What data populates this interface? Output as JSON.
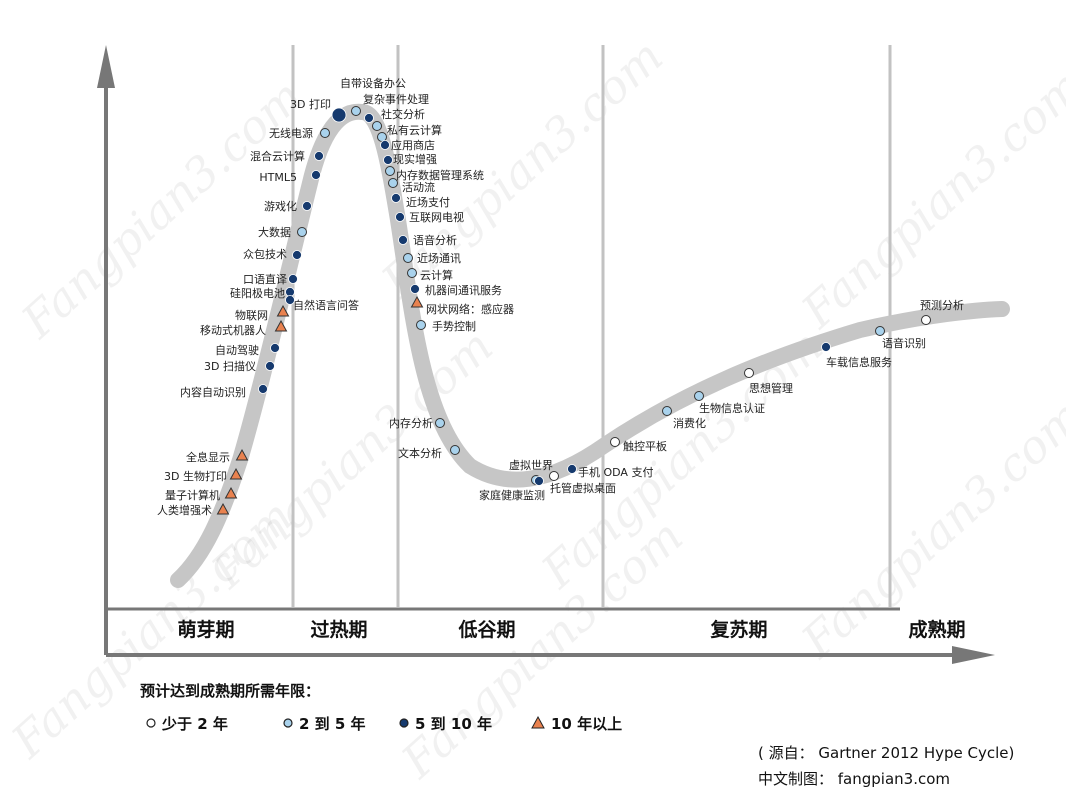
{
  "watermark": "Fangpian3.com",
  "phases": [
    "萌芽期",
    "过热期",
    "低谷期",
    "复苏期",
    "成熟期"
  ],
  "technologies": [
    {
      "label": "自带设备办公",
      "cat": "2-5"
    },
    {
      "label": "3D 打印",
      "cat": "5-10"
    },
    {
      "label": "复杂事件处理",
      "cat": "5-10"
    },
    {
      "label": "社交分析",
      "cat": "2-5"
    },
    {
      "label": "私有云计算",
      "cat": "2-5"
    },
    {
      "label": "应用商店",
      "cat": "5-10"
    },
    {
      "label": "无线电源",
      "cat": "2-5"
    },
    {
      "label": "现实增强",
      "cat": "5-10"
    },
    {
      "label": "混合云计算",
      "cat": "5-10"
    },
    {
      "label": "内存数据管理系统",
      "cat": "2-5"
    },
    {
      "label": "HTML5",
      "cat": "5-10"
    },
    {
      "label": "活动流",
      "cat": "2-5"
    },
    {
      "label": "游戏化",
      "cat": "5-10"
    },
    {
      "label": "近场支付",
      "cat": "5-10"
    },
    {
      "label": "互联网电视",
      "cat": "5-10"
    },
    {
      "label": "大数据",
      "cat": "2-5"
    },
    {
      "label": "语音分析",
      "cat": "5-10"
    },
    {
      "label": "众包技术",
      "cat": "5-10"
    },
    {
      "label": "近场通讯",
      "cat": "2-5"
    },
    {
      "label": "云计算",
      "cat": "2-5"
    },
    {
      "label": "口语直译",
      "cat": "5-10"
    },
    {
      "label": "机器间通讯服务",
      "cat": "5-10"
    },
    {
      "label": "硅阳极电池",
      "cat": "5-10"
    },
    {
      "label": "自然语言问答",
      "cat": "5-10"
    },
    {
      "label": "网状网络：感应器",
      "cat": "10+"
    },
    {
      "label": "物联网",
      "cat": "10+"
    },
    {
      "label": "手势控制",
      "cat": "2-5"
    },
    {
      "label": "移动式机器人",
      "cat": "10+"
    },
    {
      "label": "自动驾驶",
      "cat": "5-10"
    },
    {
      "label": "3D 扫描仪",
      "cat": "5-10"
    },
    {
      "label": "内容自动识别",
      "cat": "5-10"
    },
    {
      "label": "内存分析",
      "cat": "2-5"
    },
    {
      "label": "文本分析",
      "cat": "2-5"
    },
    {
      "label": "全息显示",
      "cat": "10+"
    },
    {
      "label": "3D 生物打印",
      "cat": "10+"
    },
    {
      "label": "量子计算机",
      "cat": "10+"
    },
    {
      "label": "人类增强术",
      "cat": "10+"
    },
    {
      "label": "虚拟世界",
      "cat": "2-5"
    },
    {
      "label": "家庭健康监测",
      "cat": "5-10"
    },
    {
      "label": "托管虚拟桌面",
      "cat": "lt2"
    },
    {
      "label": "手机 ODA 支付",
      "cat": "5-10"
    },
    {
      "label": "触控平板",
      "cat": "lt2"
    },
    {
      "label": "消费化",
      "cat": "2-5"
    },
    {
      "label": "生物信息认证",
      "cat": "2-5"
    },
    {
      "label": "思想管理",
      "cat": "lt2"
    },
    {
      "label": "车载信息服务",
      "cat": "5-10"
    },
    {
      "label": "语音识别",
      "cat": "2-5"
    },
    {
      "label": "预测分析",
      "cat": "lt2"
    }
  ],
  "legend": {
    "title": "预计达到成熟期所需年限：",
    "items": [
      {
        "key": "lt2",
        "label": "少于 2 年",
        "color": "#ffffff"
      },
      {
        "key": "2-5",
        "label": "2 到 5 年",
        "color": "#a9d2ec"
      },
      {
        "key": "5-10",
        "label": "5 到 10 年",
        "color": "#163a6e"
      },
      {
        "key": "10+",
        "label": "10 年以上",
        "color": "#e9824f"
      }
    ]
  },
  "credits": {
    "source": "( 源自： Gartner 2012 Hype Cycle)",
    "maker": "中文制图： fangpian3.com"
  }
}
